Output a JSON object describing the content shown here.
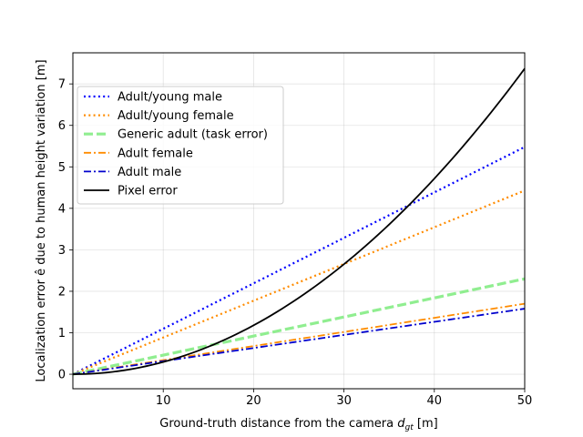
{
  "chart_data": {
    "type": "line",
    "title": "",
    "xlabel_main": "Ground-truth distance from the camera ",
    "xlabel_symbol": "d",
    "xlabel_subscript": "gt",
    "xlabel_unit": " [m]",
    "ylabel": "Localization error ê  due to human height variation [m]",
    "xlim": [
      0,
      50
    ],
    "ylim": [
      -0.35,
      7.75
    ],
    "xticks": [
      10,
      20,
      30,
      40,
      50
    ],
    "yticks": [
      0,
      1,
      2,
      3,
      4,
      5,
      6,
      7
    ],
    "grid": true,
    "legend_position": "top-left",
    "series": [
      {
        "name": "Adult/young male",
        "color": "#0000ff",
        "style": "dotted",
        "type": "linear",
        "x": [
          0,
          50
        ],
        "y": [
          0,
          5.48
        ]
      },
      {
        "name": "Adult/young female",
        "color": "#ff8c00",
        "style": "dotted",
        "type": "linear",
        "x": [
          0,
          50
        ],
        "y": [
          0,
          4.43
        ]
      },
      {
        "name": "Generic adult (task error)",
        "color": "#90ee90",
        "style": "dashed",
        "type": "linear",
        "x": [
          0,
          50
        ],
        "y": [
          0,
          2.3
        ]
      },
      {
        "name": "Adult female",
        "color": "#ff8c00",
        "style": "dashdot",
        "type": "linear",
        "x": [
          0,
          50
        ],
        "y": [
          0,
          1.7
        ]
      },
      {
        "name": "Adult male",
        "color": "#0000cd",
        "style": "dashdot",
        "type": "linear",
        "x": [
          0,
          50
        ],
        "y": [
          0,
          1.58
        ]
      },
      {
        "name": "Pixel error",
        "color": "#000000",
        "style": "solid",
        "type": "quadratic",
        "x": [
          0,
          50
        ],
        "y": [
          0,
          7.37
        ]
      }
    ]
  }
}
